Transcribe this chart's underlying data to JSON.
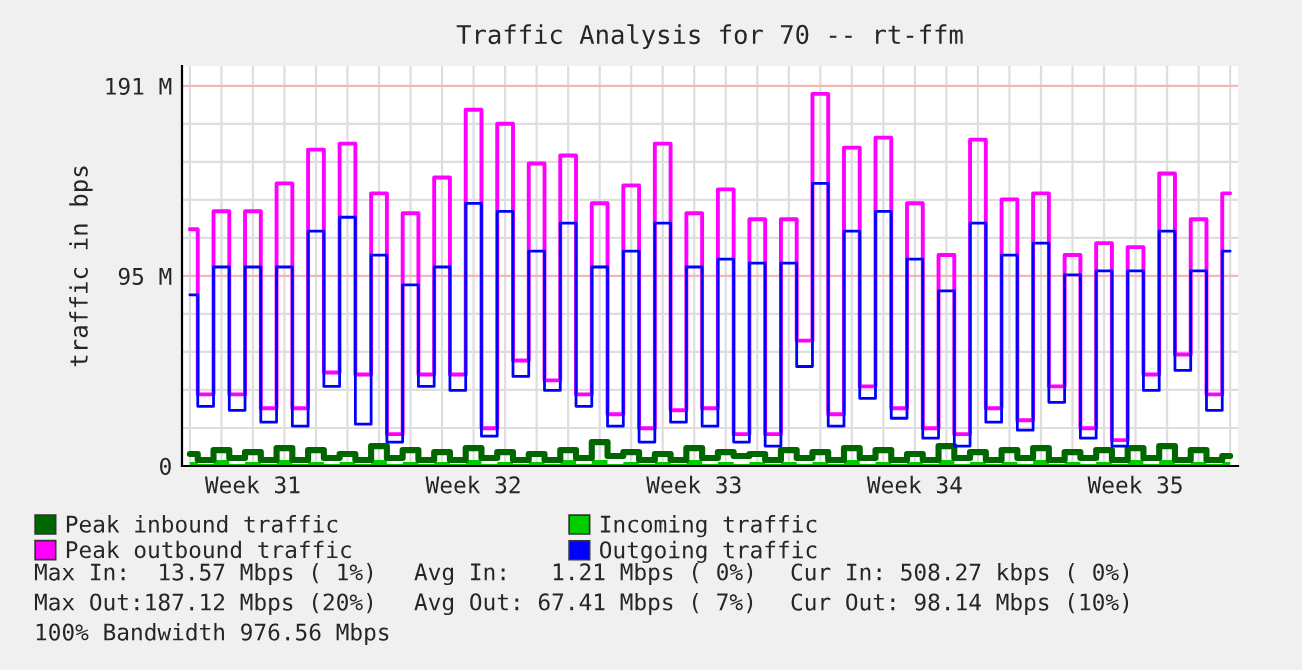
{
  "chart_data": {
    "type": "step",
    "title": "Traffic Analysis for 70 -- rt-ffm",
    "ylabel": "traffic in bps",
    "categories": [
      null,
      null,
      null,
      null,
      "Week 31",
      null,
      null,
      null,
      null,
      null,
      null,
      null,
      null,
      null,
      null,
      null,
      null,
      null,
      "Week 32",
      null,
      null,
      null,
      null,
      null,
      null,
      null,
      null,
      null,
      null,
      null,
      null,
      null,
      "Week 33",
      null,
      null,
      null,
      null,
      null,
      null,
      null,
      null,
      null,
      null,
      null,
      null,
      null,
      "Week 34",
      null,
      null,
      null,
      null,
      null,
      null,
      null,
      null,
      null,
      null,
      null,
      null,
      null,
      "Week 35",
      null,
      null,
      null,
      null,
      null,
      null
    ],
    "ylim": [
      0,
      201
    ],
    "yticks": [
      {
        "value": 0,
        "label": "0"
      },
      {
        "value": 95.5,
        "label": "95 M"
      },
      {
        "value": 191,
        "label": "191 M"
      },
      {
        "value": 19.1,
        "label": null
      },
      {
        "value": 38.2,
        "label": null
      },
      {
        "value": 57.3,
        "label": null
      },
      {
        "value": 76.4,
        "label": null
      },
      {
        "value": 114.6,
        "label": null
      },
      {
        "value": 133.7,
        "label": null
      },
      {
        "value": 152.8,
        "label": null
      },
      {
        "value": 171.9,
        "label": null
      }
    ],
    "grid": true,
    "legend": "bottom",
    "series": [
      {
        "name": "Peak inbound traffic",
        "color": "#006600",
        "values": [
          6,
          3,
          8,
          4,
          7,
          3,
          9,
          3,
          8,
          4,
          6,
          3,
          10,
          4,
          8,
          3,
          7,
          3,
          9,
          4,
          7,
          3,
          6,
          3,
          8,
          4,
          12,
          5,
          7,
          3,
          6,
          3,
          9,
          4,
          7,
          5,
          6,
          3,
          8,
          4,
          7,
          3,
          9,
          4,
          8,
          3,
          6,
          3,
          10,
          4,
          7,
          3,
          8,
          4,
          9,
          3,
          7,
          4,
          8,
          3,
          9,
          4,
          10,
          3,
          8,
          3,
          5
        ]
      },
      {
        "name": "Incoming traffic",
        "type": "area",
        "color": "#00cc00",
        "values": [
          2,
          1,
          3,
          1,
          2,
          1,
          3,
          1,
          2,
          1,
          2,
          1,
          3,
          1,
          2,
          1,
          2,
          1,
          3,
          1,
          2,
          1,
          2,
          1,
          3,
          1,
          3,
          1,
          2,
          1,
          2,
          1,
          3,
          1,
          2,
          1,
          2,
          1,
          2,
          1,
          2,
          1,
          3,
          1,
          2,
          1,
          2,
          1,
          3,
          1,
          2,
          1,
          2,
          1,
          3,
          1,
          2,
          1,
          2,
          1,
          3,
          1,
          3,
          1,
          2,
          1,
          2
        ]
      },
      {
        "name": "Peak outbound traffic",
        "color": "#ff00ff",
        "values": [
          119,
          36,
          128,
          36,
          128,
          29,
          142,
          29,
          159,
          47,
          162,
          46,
          137,
          16,
          127,
          46,
          145,
          46,
          179,
          19,
          172,
          53,
          152,
          43,
          156,
          36,
          132,
          26,
          141,
          19,
          162,
          28,
          127,
          29,
          139,
          16,
          124,
          16,
          124,
          63,
          187,
          26,
          160,
          40,
          165,
          29,
          132,
          19,
          106,
          16,
          164,
          29,
          134,
          23,
          137,
          40,
          106,
          19,
          112,
          13,
          110,
          46,
          147,
          56,
          124,
          36,
          137
        ]
      },
      {
        "name": "Outgoing traffic",
        "color": "#0000ff",
        "values": [
          86,
          30,
          100,
          28,
          100,
          22,
          100,
          20,
          118,
          40,
          125,
          21,
          106,
          12,
          91,
          40,
          100,
          38,
          132,
          15,
          128,
          45,
          108,
          38,
          122,
          30,
          100,
          20,
          108,
          12,
          122,
          22,
          100,
          20,
          104,
          12,
          102,
          10,
          102,
          50,
          142,
          20,
          118,
          34,
          128,
          24,
          104,
          14,
          88,
          10,
          122,
          22,
          106,
          18,
          112,
          32,
          96,
          14,
          98,
          10,
          98,
          38,
          118,
          48,
          98,
          28,
          108
        ]
      }
    ],
    "annotations": [
      "Max In:  13.57 Mbps ( 1%)",
      "Avg In:   1.21 Mbps ( 0%)",
      "Cur In: 508.27 kbps ( 0%)",
      "Max Out:187.12 Mbps (20%)",
      "Avg Out: 67.41 Mbps ( 7%)",
      "Cur Out: 98.14 Mbps (10%)",
      "100% Bandwidth 976.56 Mbps"
    ]
  }
}
